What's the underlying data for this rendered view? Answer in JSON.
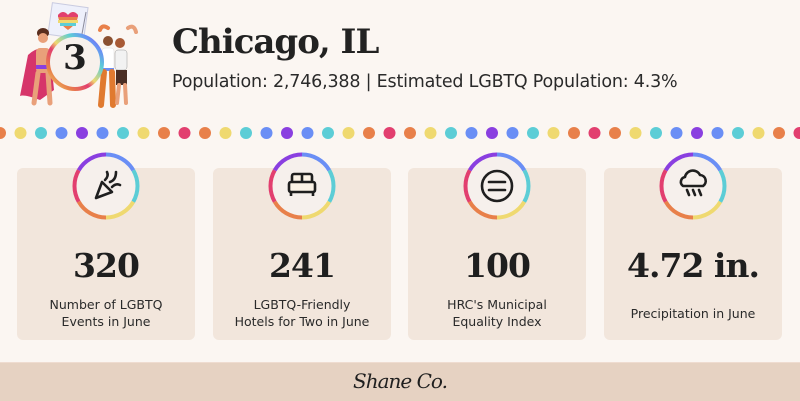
{
  "header": {
    "rank": "3",
    "city": "Chicago, IL",
    "subtitle": "Population: 2,746,388 | Estimated LGBTQ Population: 4.3%"
  },
  "decor": {
    "dot_colors": [
      "#e8804a",
      "#efd970",
      "#5ccdd6",
      "#6a8ef5",
      "#8a3fe0",
      "#6a8ef5",
      "#5ccdd6",
      "#efd970",
      "#e8804a",
      "#e23f6f"
    ],
    "ring_colors": [
      "#e23f6f",
      "#e8804a",
      "#efd970",
      "#5ccdd6",
      "#6a8ef5",
      "#8a3fe0"
    ]
  },
  "stats": [
    {
      "icon": "party-popper-icon",
      "value": "320",
      "label_lines": [
        "Number of LGBTQ",
        "Events in June"
      ]
    },
    {
      "icon": "bed-icon",
      "value": "241",
      "label_lines": [
        "LGBTQ-Friendly",
        "Hotels for Two in June"
      ]
    },
    {
      "icon": "equal-sign-icon",
      "value": "100",
      "label_lines": [
        "HRC's Municipal",
        "Equality Index"
      ]
    },
    {
      "icon": "rain-cloud-icon",
      "value": "4.72 in.",
      "label_lines": [
        "Precipitation in June"
      ]
    }
  ],
  "footer": {
    "brand": "Shane Co."
  }
}
